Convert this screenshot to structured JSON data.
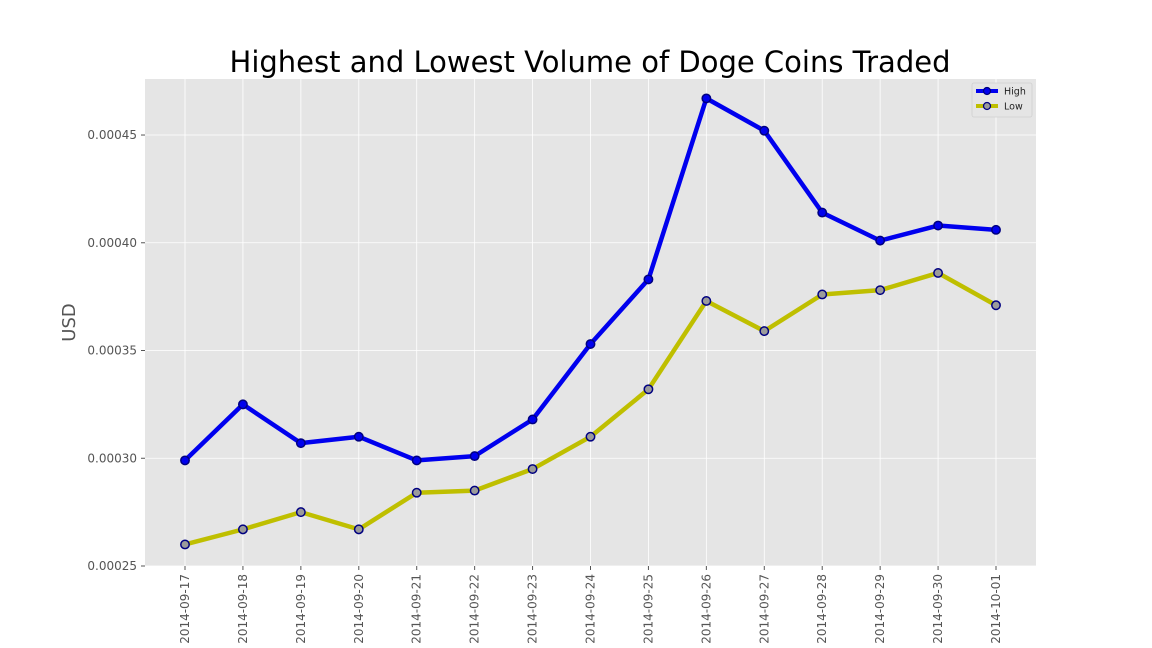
{
  "chart_data": {
    "type": "line",
    "title": "Highest and Lowest Volume of Doge Coins Traded",
    "xlabel": "",
    "ylabel": "USD",
    "categories": [
      "2014-09-17",
      "2014-09-18",
      "2014-09-19",
      "2014-09-20",
      "2014-09-21",
      "2014-09-22",
      "2014-09-23",
      "2014-09-24",
      "2014-09-25",
      "2014-09-26",
      "2014-09-27",
      "2014-09-28",
      "2014-09-29",
      "2014-09-30",
      "2014-10-01"
    ],
    "series": [
      {
        "name": "High",
        "color": "#0000ee",
        "marker_face": "#0000ee",
        "values": [
          0.000299,
          0.000325,
          0.000307,
          0.00031,
          0.000299,
          0.000301,
          0.000318,
          0.000353,
          0.000383,
          0.000467,
          0.000452,
          0.000414,
          0.000401,
          0.000408,
          0.000406
        ]
      },
      {
        "name": "Low",
        "color": "#bfbf00",
        "marker_face": "#9b9b9b",
        "values": [
          0.00026,
          0.000267,
          0.000275,
          0.000267,
          0.000284,
          0.000285,
          0.000295,
          0.00031,
          0.000332,
          0.000373,
          0.000359,
          0.000376,
          0.000378,
          0.000386,
          0.000371
        ]
      }
    ],
    "ylim": [
      0.00025,
      0.000476
    ],
    "yticks": [
      0.00025,
      0.0003,
      0.00035,
      0.0004,
      0.00045
    ],
    "ytick_labels": [
      "0.00025",
      "0.00030",
      "0.00035",
      "0.00040",
      "0.00045"
    ],
    "grid": true,
    "legend_position": "top-right",
    "background": "#e5e5e5"
  }
}
